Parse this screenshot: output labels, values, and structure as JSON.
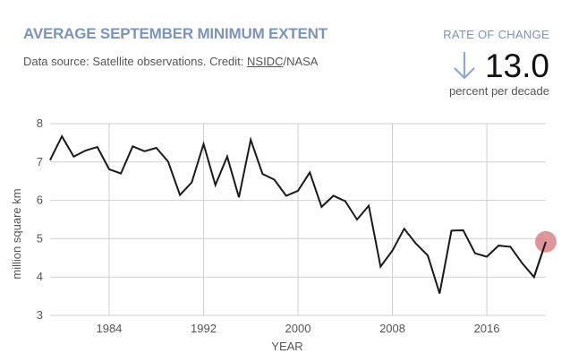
{
  "header": {
    "title": "AVERAGE SEPTEMBER MINIMUM EXTENT",
    "source_prefix": "Data source: Satellite observations. Credit: ",
    "source_link": "NSIDC",
    "source_suffix": "/NASA"
  },
  "rate": {
    "label": "RATE OF CHANGE",
    "value": "13.0",
    "unit": "percent per decade",
    "direction": "down",
    "arrow_icon": "arrow-down-icon",
    "arrow_color": "#8fa8d0"
  },
  "chart_data": {
    "type": "line",
    "xlabel": "YEAR",
    "ylabel": "million square km",
    "xlim": [
      1979,
      2021
    ],
    "ylim": [
      3,
      8
    ],
    "x_ticks": [
      "1984",
      "1992",
      "2000",
      "2008",
      "2016"
    ],
    "y_ticks": [
      "3",
      "4",
      "5",
      "6",
      "7",
      "8"
    ],
    "grid": "vertical gridlines at year ticks, horizontal gridlines at integer values",
    "line_color": "#1a1a1a",
    "highlight_color": "#d9848a",
    "highlight_point": "last",
    "series": [
      {
        "x": [
          1979,
          1980,
          1981,
          1982,
          1983,
          1984,
          1985,
          1986,
          1987,
          1988,
          1989,
          1990,
          1991,
          1992,
          1993,
          1994,
          1995,
          1996,
          1997,
          1998,
          1999,
          2000,
          2001,
          2002,
          2003,
          2004,
          2005,
          2006,
          2007,
          2008,
          2009,
          2010,
          2011,
          2012,
          2013,
          2014,
          2015,
          2016,
          2017,
          2018,
          2019,
          2020,
          2021
        ],
        "values": [
          7.05,
          7.67,
          7.14,
          7.3,
          7.39,
          6.81,
          6.7,
          7.41,
          7.28,
          7.37,
          7.01,
          6.14,
          6.47,
          7.47,
          6.4,
          7.14,
          6.08,
          7.58,
          6.69,
          6.54,
          6.12,
          6.25,
          6.73,
          5.83,
          6.12,
          5.98,
          5.5,
          5.86,
          4.27,
          4.69,
          5.26,
          4.87,
          4.56,
          3.57,
          5.21,
          5.22,
          4.62,
          4.53,
          4.82,
          4.79,
          4.36,
          4.0,
          4.92
        ]
      }
    ]
  }
}
